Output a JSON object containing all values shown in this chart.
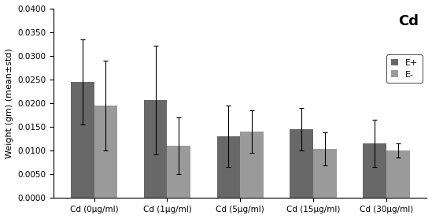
{
  "title": "Cd",
  "ylabel": "Weight (gm) (mean±std)",
  "categories": [
    "Cd (0μg/ml)",
    "Cd (1μg/ml)",
    "Cd (5μg/ml)",
    "Cd (15μg/ml)",
    "Cd (30μg/ml)"
  ],
  "eplus_means": [
    0.0245,
    0.0207,
    0.013,
    0.0145,
    0.0115
  ],
  "eminus_means": [
    0.0195,
    0.011,
    0.014,
    0.0104,
    0.01
  ],
  "eplus_errors": [
    0.009,
    0.0115,
    0.0065,
    0.0045,
    0.005
  ],
  "eminus_errors": [
    0.0095,
    0.006,
    0.0045,
    0.0035,
    0.0015
  ],
  "eplus_color": "#686868",
  "eminus_color": "#9a9a9a",
  "ylim": [
    0,
    0.04
  ],
  "yticks": [
    0.0,
    0.005,
    0.01,
    0.015,
    0.02,
    0.025,
    0.03,
    0.035,
    0.04
  ],
  "legend_labels": [
    "E+",
    "E-"
  ],
  "bar_width": 0.32,
  "figsize": [
    5.49,
    2.78
  ],
  "dpi": 100,
  "title_fontsize": 13,
  "axis_fontsize": 8,
  "tick_fontsize": 7.5,
  "legend_fontsize": 8
}
